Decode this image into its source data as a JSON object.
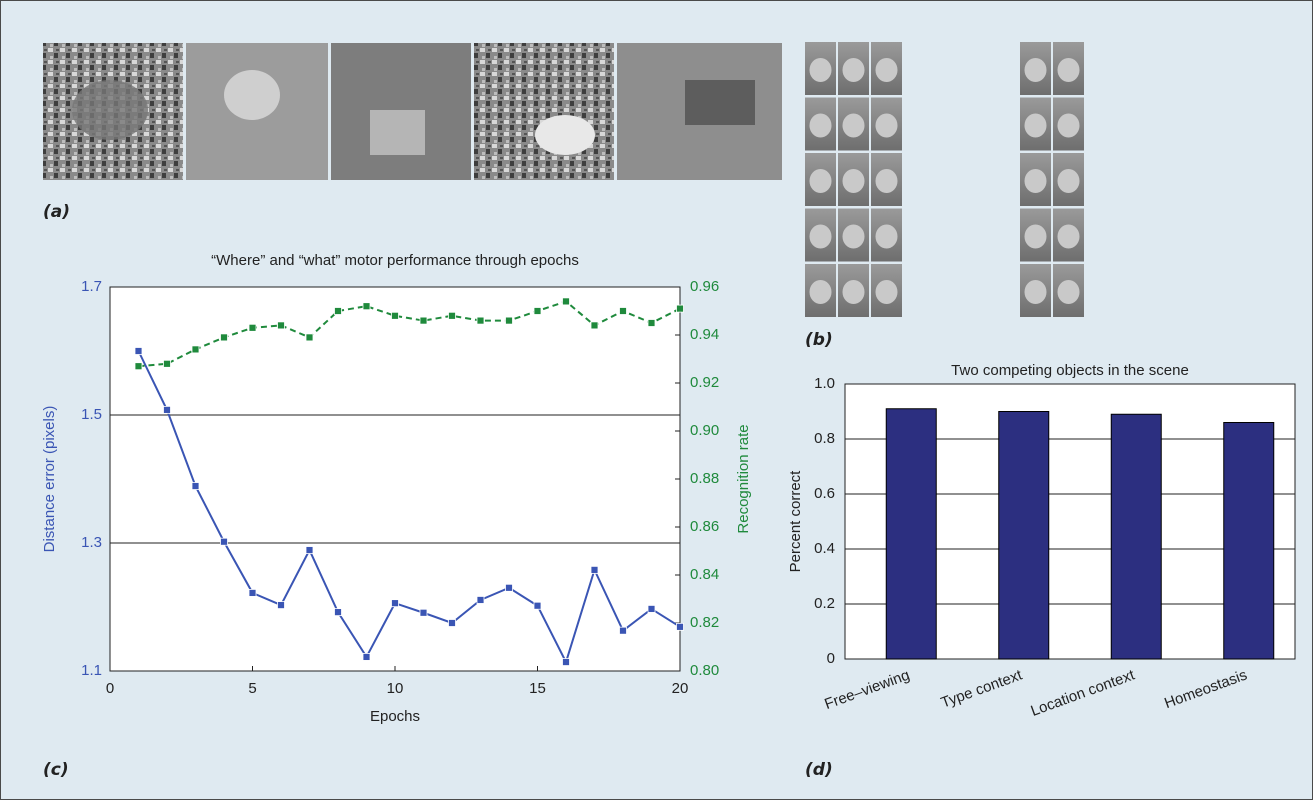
{
  "figure": {
    "panels": [
      "(a)",
      "(b)",
      "(c)",
      "(d)"
    ]
  },
  "chart_data": [
    {
      "type": "line",
      "title": "“Where” and “what” motor performance through epochs",
      "x_label": "Epochs",
      "y_label": "Distance error (pixels)",
      "y2_label": "Recognition rate",
      "x": [
        1,
        2,
        3,
        4,
        5,
        6,
        7,
        8,
        9,
        10,
        11,
        12,
        13,
        14,
        15,
        16,
        17,
        18,
        19,
        20
      ],
      "series": [
        {
          "name": "Distance error (pixels)",
          "color": "#3a55b4",
          "dash": false,
          "values": [
            1.6,
            1.508,
            1.389,
            1.302,
            1.222,
            1.203,
            1.289,
            1.192,
            1.122,
            1.206,
            1.191,
            1.175,
            1.211,
            1.23,
            1.202,
            1.114,
            1.258,
            1.163,
            1.197,
            1.169
          ]
        },
        {
          "name": "Recognition rate",
          "color": "#1f8a3c",
          "dash": true,
          "axis": "y2",
          "values": [
            0.927,
            0.928,
            0.934,
            0.939,
            0.943,
            0.944,
            0.939,
            0.95,
            0.952,
            0.948,
            0.946,
            0.948,
            0.946,
            0.946,
            0.95,
            0.954,
            0.944,
            0.95,
            0.945,
            0.951
          ]
        }
      ],
      "xlim": [
        0,
        20
      ],
      "xticks": [
        0,
        5,
        10,
        15,
        20
      ],
      "ylim": [
        1.1,
        1.7
      ],
      "yticks": [
        1.1,
        1.3,
        1.5,
        1.7
      ],
      "y2lim": [
        0.8,
        0.96
      ],
      "y2ticks": [
        {
          "value": 0.8,
          "label": "0.80"
        },
        0.82,
        0.84,
        0.86,
        0.88,
        {
          "value": 0.9,
          "label": "0.90"
        },
        0.92,
        0.94,
        0.96
      ],
      "grid": true
    },
    {
      "type": "bar",
      "title": "Two competing objects in the scene",
      "y_label": "Percent correct",
      "categories": [
        "Free–viewing",
        "Type context",
        "Location context",
        "Homeostasis"
      ],
      "values": [
        0.91,
        0.9,
        0.89,
        0.86
      ],
      "color": "#2c2f80",
      "ylim": [
        0,
        1
      ],
      "yticks": [
        0,
        0.2,
        0.4,
        0.6,
        0.8,
        {
          "value": 1,
          "label": "1.0"
        }
      ],
      "grid": true
    }
  ]
}
